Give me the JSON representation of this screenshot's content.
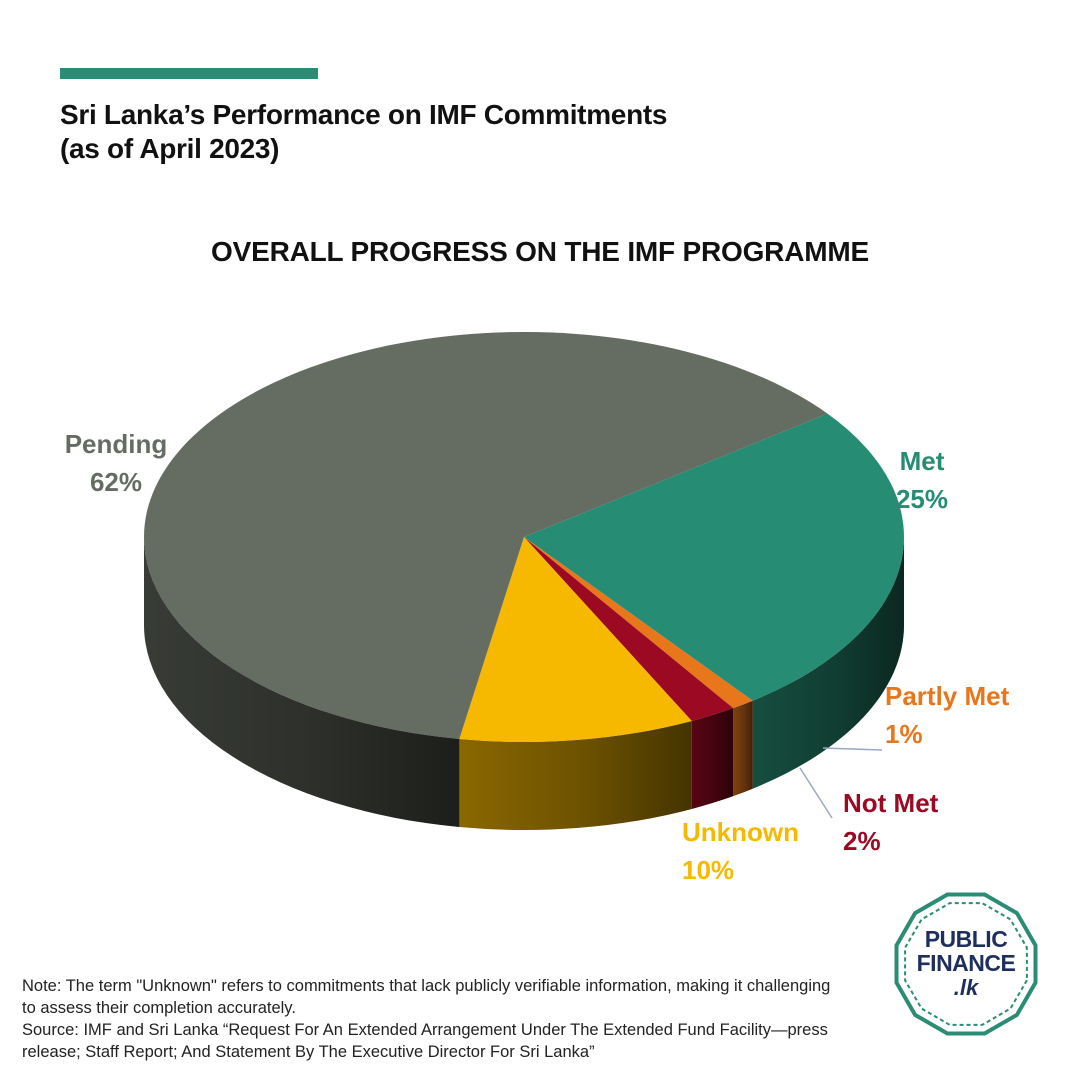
{
  "header": {
    "title_line1": "Sri Lanka’s Performance on IMF Commitments",
    "title_line2": "(as of April 2023)"
  },
  "colors": {
    "accent": "#2a8c74",
    "pending": "#656c61",
    "met": "#268c73",
    "partly_met": "#e8761b",
    "not_met": "#9b0a22",
    "unknown": "#f6b900"
  },
  "chart_data": {
    "type": "pie",
    "title": "OVERALL PROGRESS ON THE IMF PROGRAMME",
    "slices": [
      {
        "name": "Met",
        "value": 25,
        "label": "25%",
        "color": "#268c73"
      },
      {
        "name": "Partly Met",
        "value": 1,
        "label": "1%",
        "color": "#e8761b"
      },
      {
        "name": "Not Met",
        "value": 2,
        "label": "2%",
        "color": "#9b0a22"
      },
      {
        "name": "Unknown",
        "value": 10,
        "label": "10%",
        "color": "#f6b900"
      },
      {
        "name": "Pending",
        "value": 62,
        "label": "62%",
        "color": "#656c61"
      }
    ],
    "style": "3d"
  },
  "footer": {
    "note": "Note: The term \"Unknown\" refers to commitments that lack publicly verifiable information, making it challenging to assess their completion accurately.",
    "source": "Source: IMF and Sri Lanka “Request For An Extended Arrangement Under The Extended Fund Facility—press release; Staff Report; And Statement By The Executive Director For Sri Lanka”"
  },
  "logo": {
    "line1": "PUBLIC",
    "line2": "FINANCE",
    "line3": ".lk"
  }
}
